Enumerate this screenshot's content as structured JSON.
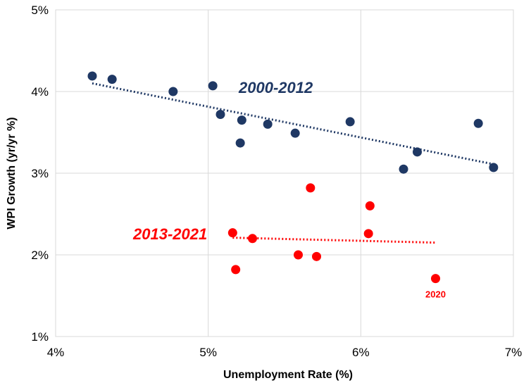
{
  "chart_data": {
    "type": "scatter",
    "title": "",
    "xlabel": "Unemployment Rate  (%)",
    "ylabel": "WPI Growth (yr/yr %)",
    "xlim": [
      4,
      7
    ],
    "ylim": [
      1,
      5
    ],
    "x_ticks": [
      4,
      5,
      6,
      7
    ],
    "y_ticks": [
      1,
      2,
      3,
      4,
      5
    ],
    "x_tick_labels": [
      "4%",
      "5%",
      "6%",
      "7%"
    ],
    "y_tick_labels": [
      "1%",
      "2%",
      "3%",
      "4%",
      "5%"
    ],
    "grid": true,
    "series": [
      {
        "name": "2000-2012",
        "label": "2000-2012",
        "color": "#1f3864",
        "points": [
          {
            "x": 4.24,
            "y": 4.19
          },
          {
            "x": 4.37,
            "y": 4.15
          },
          {
            "x": 4.77,
            "y": 4.0
          },
          {
            "x": 5.03,
            "y": 4.07
          },
          {
            "x": 5.08,
            "y": 3.72
          },
          {
            "x": 5.22,
            "y": 3.65
          },
          {
            "x": 5.21,
            "y": 3.37
          },
          {
            "x": 5.39,
            "y": 3.6
          },
          {
            "x": 5.57,
            "y": 3.49
          },
          {
            "x": 5.93,
            "y": 3.63
          },
          {
            "x": 6.37,
            "y": 3.26
          },
          {
            "x": 6.28,
            "y": 3.05
          },
          {
            "x": 6.77,
            "y": 3.61
          },
          {
            "x": 6.87,
            "y": 3.07
          }
        ],
        "trend": {
          "x0": 4.24,
          "y0": 4.1,
          "x1": 6.87,
          "y1": 3.11
        }
      },
      {
        "name": "2013-2021",
        "label": "2013-2021",
        "color": "#ff0000",
        "points": [
          {
            "x": 5.16,
            "y": 2.27
          },
          {
            "x": 5.29,
            "y": 2.2
          },
          {
            "x": 5.18,
            "y": 1.82
          },
          {
            "x": 5.67,
            "y": 2.82
          },
          {
            "x": 5.59,
            "y": 2.0
          },
          {
            "x": 5.71,
            "y": 1.98
          },
          {
            "x": 6.06,
            "y": 2.6
          },
          {
            "x": 6.05,
            "y": 2.26
          },
          {
            "x": 6.49,
            "y": 1.71
          }
        ],
        "trend": {
          "x0": 5.16,
          "y0": 2.21,
          "x1": 6.49,
          "y1": 2.15
        }
      }
    ],
    "annotations": [
      {
        "text": "2020",
        "color": "#ff0000",
        "near": {
          "x": 6.49,
          "y": 1.71
        }
      }
    ]
  }
}
